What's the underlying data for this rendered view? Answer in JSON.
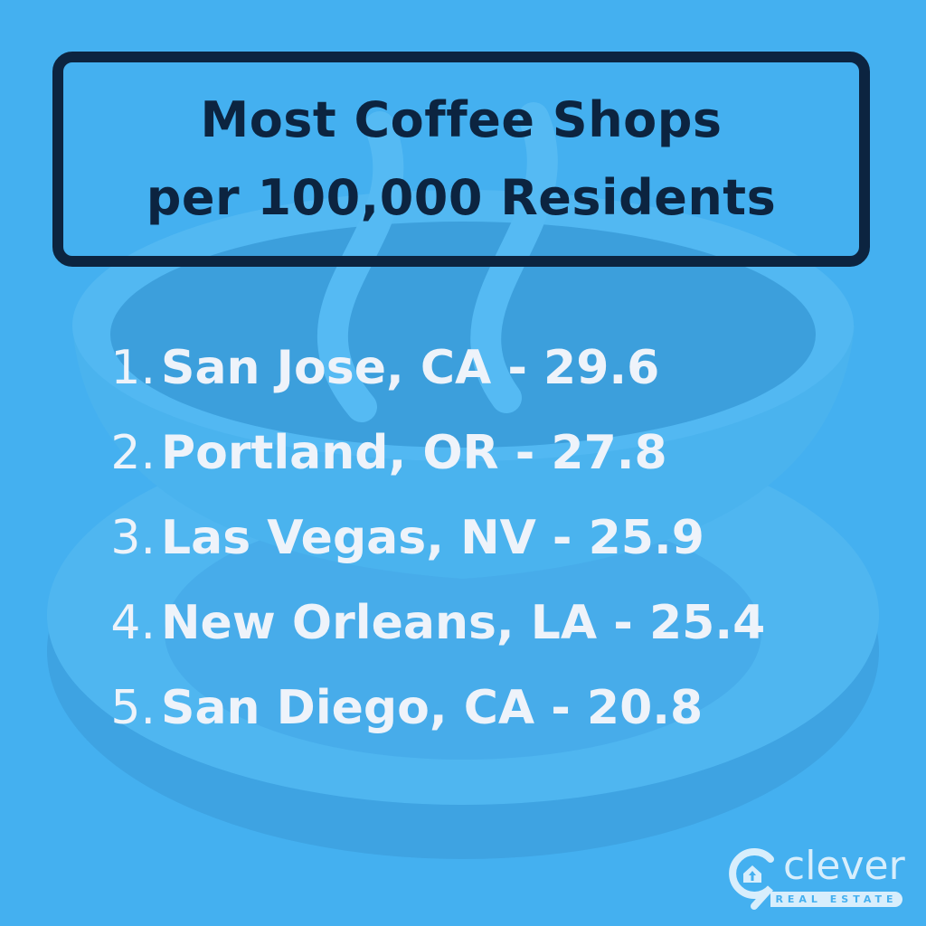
{
  "title": {
    "line1": "Most Coffee Shops",
    "line2": "per 100,000 Residents"
  },
  "ranking": [
    {
      "rank": "1.",
      "city": "San Jose, CA - 29.6"
    },
    {
      "rank": "2.",
      "city": "Portland, OR - 27.8"
    },
    {
      "rank": "3.",
      "city": "Las Vegas, NV - 25.9"
    },
    {
      "rank": "4.",
      "city": "New Orleans, LA - 25.4"
    },
    {
      "rank": "5.",
      "city": "San Diego, CA - 20.8"
    }
  ],
  "logo": {
    "word": "clever",
    "sub": "REAL ESTATE"
  },
  "colors": {
    "background": "#44b0f0",
    "title": "#0c2440",
    "list_text": "#eef3fa"
  },
  "background_illustration": "coffee-cup-icon"
}
